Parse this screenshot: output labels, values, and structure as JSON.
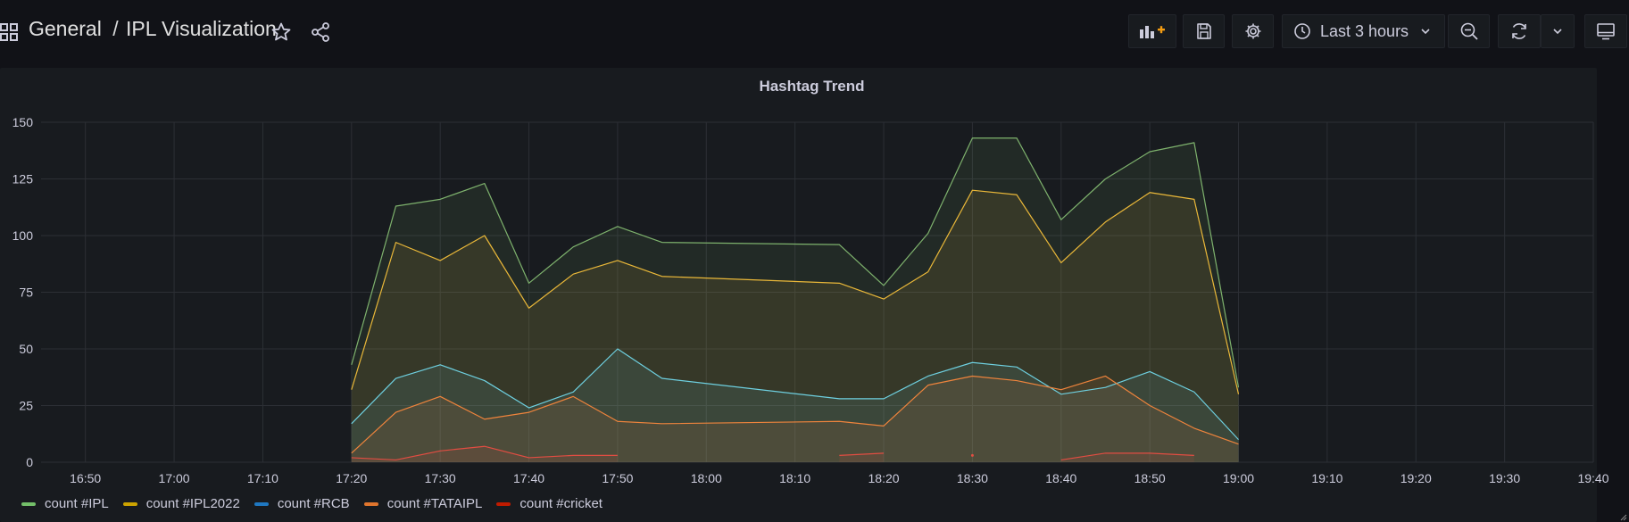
{
  "header": {
    "folder": "General",
    "separator": "/",
    "dashboard_title": "IPL Visualization",
    "time_range_label": "Last 3 hours"
  },
  "icons": {
    "apps": "grid-icon",
    "star": "star-icon",
    "share": "share-icon",
    "add_panel": "add-panel-icon",
    "save": "save-icon",
    "settings": "gear-icon",
    "clock": "clock-icon",
    "time_dropdown": "chevron-down-icon",
    "zoom_out": "zoom-out-icon",
    "refresh": "refresh-icon",
    "refresh_dropdown": "chevron-down-icon",
    "tv_mode": "monitor-icon"
  },
  "colors": {
    "ipl": "#7eb26d",
    "ipl2022": "#eab839",
    "rcb": "#6ed0e0",
    "tataipl": "#ef843c",
    "cricket": "#e24d42",
    "ipl_legend": "#73bf69",
    "ipl2022_legend": "#cca300",
    "rcb_legend": "#1f78c1",
    "tataipl_legend": "#e0752d",
    "cricket_legend": "#bf1b00"
  },
  "chart_data": {
    "type": "area",
    "title": "Hashtag Trend",
    "xlabel": "",
    "ylabel": "",
    "ylim": [
      0,
      150
    ],
    "y_ticks": [
      0,
      25,
      50,
      75,
      100,
      125,
      150
    ],
    "x_range": [
      "16:45",
      "19:40"
    ],
    "x_ticks": [
      "16:50",
      "17:00",
      "17:10",
      "17:20",
      "17:30",
      "17:40",
      "17:50",
      "18:00",
      "18:10",
      "18:20",
      "18:30",
      "18:40",
      "18:50",
      "19:00",
      "19:10",
      "19:20",
      "19:30",
      "19:40"
    ],
    "grid": true,
    "legend_position": "bottom-left",
    "series": [
      {
        "name": "count #IPL",
        "segments": [
          [
            [
              "17:20",
              43
            ],
            [
              "17:25",
              113
            ],
            [
              "17:30",
              116
            ],
            [
              "17:35",
              123
            ],
            [
              "17:40",
              79
            ],
            [
              "17:45",
              95
            ],
            [
              "17:50",
              104
            ],
            [
              "17:55",
              97
            ],
            [
              "18:15",
              96
            ],
            [
              "18:20",
              78
            ],
            [
              "18:25",
              101
            ],
            [
              "18:30",
              143
            ],
            [
              "18:35",
              143
            ],
            [
              "18:40",
              107
            ],
            [
              "18:45",
              125
            ],
            [
              "18:50",
              137
            ],
            [
              "18:55",
              141
            ],
            [
              "19:00",
              33
            ]
          ]
        ]
      },
      {
        "name": "count #IPL2022",
        "segments": [
          [
            [
              "17:20",
              32
            ],
            [
              "17:25",
              97
            ],
            [
              "17:30",
              89
            ],
            [
              "17:35",
              100
            ],
            [
              "17:40",
              68
            ],
            [
              "17:45",
              83
            ],
            [
              "17:50",
              89
            ],
            [
              "17:55",
              82
            ],
            [
              "18:15",
              79
            ],
            [
              "18:20",
              72
            ],
            [
              "18:25",
              84
            ],
            [
              "18:30",
              120
            ],
            [
              "18:35",
              118
            ],
            [
              "18:40",
              88
            ],
            [
              "18:45",
              106
            ],
            [
              "18:50",
              119
            ],
            [
              "18:55",
              116
            ],
            [
              "19:00",
              30
            ]
          ]
        ]
      },
      {
        "name": "count #RCB",
        "segments": [
          [
            [
              "17:20",
              17
            ],
            [
              "17:25",
              37
            ],
            [
              "17:30",
              43
            ],
            [
              "17:35",
              36
            ],
            [
              "17:40",
              24
            ],
            [
              "17:45",
              31
            ],
            [
              "17:50",
              50
            ],
            [
              "17:55",
              37
            ],
            [
              "18:15",
              28
            ],
            [
              "18:20",
              28
            ],
            [
              "18:25",
              38
            ],
            [
              "18:30",
              44
            ],
            [
              "18:35",
              42
            ],
            [
              "18:40",
              30
            ],
            [
              "18:45",
              33
            ],
            [
              "18:50",
              40
            ],
            [
              "18:55",
              31
            ],
            [
              "19:00",
              10
            ]
          ]
        ]
      },
      {
        "name": "count #TATAIPL",
        "segments": [
          [
            [
              "17:20",
              4
            ],
            [
              "17:25",
              22
            ],
            [
              "17:30",
              29
            ],
            [
              "17:35",
              19
            ],
            [
              "17:40",
              22
            ],
            [
              "17:45",
              29
            ],
            [
              "17:50",
              18
            ],
            [
              "17:55",
              17
            ],
            [
              "18:15",
              18
            ],
            [
              "18:20",
              16
            ],
            [
              "18:25",
              34
            ],
            [
              "18:30",
              38
            ],
            [
              "18:35",
              36
            ],
            [
              "18:40",
              32
            ],
            [
              "18:45",
              38
            ],
            [
              "18:50",
              25
            ],
            [
              "18:55",
              15
            ],
            [
              "19:00",
              8
            ]
          ]
        ]
      },
      {
        "name": "count #cricket",
        "segments": [
          [
            [
              "17:20",
              2
            ],
            [
              "17:25",
              1
            ],
            [
              "17:30",
              5
            ],
            [
              "17:35",
              7
            ],
            [
              "17:40",
              2
            ],
            [
              "17:45",
              3
            ],
            [
              "17:50",
              3
            ]
          ],
          [
            [
              "18:15",
              3
            ],
            [
              "18:20",
              4
            ]
          ],
          [
            [
              "18:30",
              3
            ]
          ],
          [
            [
              "18:40",
              1
            ],
            [
              "18:45",
              4
            ],
            [
              "18:50",
              4
            ],
            [
              "18:55",
              3
            ]
          ]
        ]
      }
    ]
  }
}
